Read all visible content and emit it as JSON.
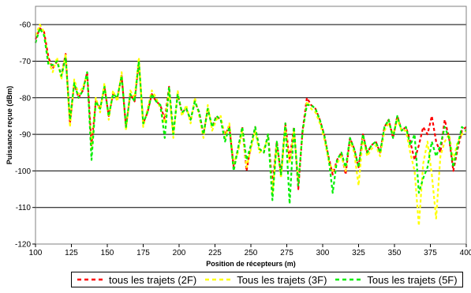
{
  "chart_data": {
    "type": "line",
    "title": "",
    "xlabel": "Position de récepteurs (m)",
    "ylabel": "Puissance reçue (dBm)",
    "xlim": [
      100,
      400
    ],
    "ylim": [
      -120,
      -55
    ],
    "xticks": [
      100,
      125,
      150,
      175,
      200,
      225,
      250,
      275,
      300,
      325,
      350,
      375,
      400
    ],
    "yticks": [
      -60,
      -70,
      -80,
      -90,
      -100,
      -110,
      -120
    ],
    "grid": "horizontal",
    "legend_position": "bottom",
    "series": [
      {
        "name": "tous les trajets (2F)",
        "color": "#ff0000",
        "style": "dashed",
        "x": [
          100,
          103,
          106,
          109,
          112,
          115,
          118,
          121,
          124,
          127,
          130,
          133,
          136,
          139,
          142,
          145,
          148,
          151,
          154,
          157,
          160,
          163,
          166,
          169,
          172,
          175,
          178,
          181,
          184,
          187,
          190,
          193,
          196,
          199,
          202,
          205,
          208,
          211,
          214,
          217,
          220,
          223,
          226,
          229,
          232,
          235,
          238,
          241,
          244,
          247,
          250,
          253,
          256,
          259,
          262,
          265,
          268,
          271,
          274,
          277,
          280,
          283,
          286,
          289,
          292,
          295,
          298,
          301,
          304,
          307,
          310,
          313,
          316,
          319,
          322,
          325,
          328,
          331,
          334,
          337,
          340,
          343,
          346,
          349,
          352,
          355,
          358,
          361,
          364,
          367,
          370,
          373,
          376,
          379,
          382,
          385,
          388,
          391,
          394,
          397,
          400
        ],
        "y": [
          -64,
          -61,
          -62,
          -69,
          -72,
          -70,
          -74,
          -68,
          -87,
          -76,
          -80,
          -78,
          -73,
          -93,
          -81,
          -83,
          -77,
          -85,
          -79,
          -80,
          -74,
          -88,
          -79,
          -81,
          -70,
          -87,
          -84,
          -79,
          -81,
          -82,
          -86,
          -77,
          -90,
          -79,
          -84,
          -83,
          -86,
          -81,
          -84,
          -90,
          -83,
          -88,
          -85,
          -86,
          -90,
          -88,
          -99,
          -94,
          -88,
          -100,
          -93,
          -88,
          -94,
          -95,
          -90,
          -104,
          -92,
          -101,
          -87,
          -97,
          -88,
          -105,
          -89,
          -80,
          -82,
          -83,
          -86,
          -90,
          -96,
          -101,
          -97,
          -95,
          -101,
          -91,
          -94,
          -99,
          -90,
          -95,
          -93,
          -92,
          -95,
          -88,
          -86,
          -91,
          -85,
          -89,
          -88,
          -92,
          -97,
          -93,
          -88,
          -90,
          -85,
          -92,
          -95,
          -86,
          -91,
          -100,
          -94,
          -89,
          -88
        ]
      },
      {
        "name": "Tous les trajets (3F)",
        "color": "#ffff00",
        "style": "dashed",
        "x": [
          100,
          103,
          106,
          109,
          112,
          115,
          118,
          121,
          124,
          127,
          130,
          133,
          136,
          139,
          142,
          145,
          148,
          151,
          154,
          157,
          160,
          163,
          166,
          169,
          172,
          175,
          178,
          181,
          184,
          187,
          190,
          193,
          196,
          199,
          202,
          205,
          208,
          211,
          214,
          217,
          220,
          223,
          226,
          229,
          232,
          235,
          238,
          241,
          244,
          247,
          250,
          253,
          256,
          259,
          262,
          265,
          268,
          271,
          274,
          277,
          280,
          283,
          286,
          289,
          292,
          295,
          298,
          301,
          304,
          307,
          310,
          313,
          316,
          319,
          322,
          325,
          328,
          331,
          334,
          337,
          340,
          343,
          346,
          349,
          352,
          355,
          358,
          361,
          364,
          367,
          370,
          373,
          376,
          379,
          382,
          385,
          388,
          391,
          394,
          397,
          400
        ],
        "y": [
          -63,
          -60,
          -62,
          -70,
          -73,
          -69,
          -75,
          -68,
          -88,
          -75,
          -79,
          -77,
          -74,
          -94,
          -80,
          -84,
          -76,
          -86,
          -78,
          -81,
          -73,
          -89,
          -78,
          -80,
          -69,
          -88,
          -83,
          -78,
          -80,
          -83,
          -87,
          -78,
          -91,
          -78,
          -85,
          -82,
          -87,
          -80,
          -85,
          -91,
          -82,
          -89,
          -86,
          -85,
          -91,
          -87,
          -98,
          -95,
          -89,
          -99,
          -94,
          -89,
          -95,
          -94,
          -91,
          -106,
          -93,
          -102,
          -88,
          -98,
          -89,
          -103,
          -90,
          -81,
          -83,
          -84,
          -87,
          -91,
          -97,
          -100,
          -98,
          -96,
          -100,
          -92,
          -95,
          -104,
          -91,
          -96,
          -94,
          -93,
          -96,
          -89,
          -87,
          -90,
          -86,
          -89,
          -89,
          -95,
          -100,
          -115,
          -98,
          -92,
          -101,
          -113,
          -96,
          -92,
          -90,
          -97,
          -92,
          -90,
          -89
        ]
      },
      {
        "name": "Tous les trajets (5F)",
        "color": "#00ee00",
        "style": "dashed",
        "x": [
          100,
          103,
          106,
          109,
          112,
          115,
          118,
          121,
          124,
          127,
          130,
          133,
          136,
          139,
          142,
          145,
          148,
          151,
          154,
          157,
          160,
          163,
          166,
          169,
          172,
          175,
          178,
          181,
          184,
          187,
          190,
          193,
          196,
          199,
          202,
          205,
          208,
          211,
          214,
          217,
          220,
          223,
          226,
          229,
          232,
          235,
          238,
          241,
          244,
          247,
          250,
          253,
          256,
          259,
          262,
          265,
          268,
          271,
          274,
          277,
          280,
          283,
          286,
          289,
          292,
          295,
          298,
          301,
          304,
          307,
          310,
          313,
          316,
          319,
          322,
          325,
          328,
          331,
          334,
          337,
          340,
          343,
          346,
          349,
          352,
          355,
          358,
          361,
          364,
          367,
          370,
          373,
          376,
          379,
          382,
          385,
          388,
          391,
          394,
          397,
          400
        ],
        "y": [
          -65,
          -61,
          -63,
          -71,
          -71,
          -70,
          -74,
          -69,
          -86,
          -76,
          -80,
          -78,
          -73,
          -97,
          -81,
          -83,
          -77,
          -85,
          -79,
          -80,
          -74,
          -88,
          -79,
          -81,
          -70,
          -87,
          -84,
          -79,
          -81,
          -82,
          -91,
          -77,
          -90,
          -79,
          -84,
          -83,
          -86,
          -81,
          -84,
          -90,
          -83,
          -88,
          -85,
          -86,
          -92,
          -88,
          -100,
          -94,
          -88,
          -97,
          -93,
          -88,
          -94,
          -95,
          -90,
          -108,
          -92,
          -101,
          -87,
          -109,
          -88,
          -104,
          -89,
          -82,
          -82,
          -83,
          -86,
          -90,
          -96,
          -106,
          -97,
          -95,
          -99,
          -91,
          -94,
          -99,
          -90,
          -95,
          -93,
          -92,
          -95,
          -88,
          -86,
          -91,
          -85,
          -89,
          -88,
          -93,
          -90,
          -106,
          -102,
          -99,
          -92,
          -96,
          -93,
          -88,
          -91,
          -99,
          -93,
          -88,
          -89
        ]
      }
    ]
  }
}
